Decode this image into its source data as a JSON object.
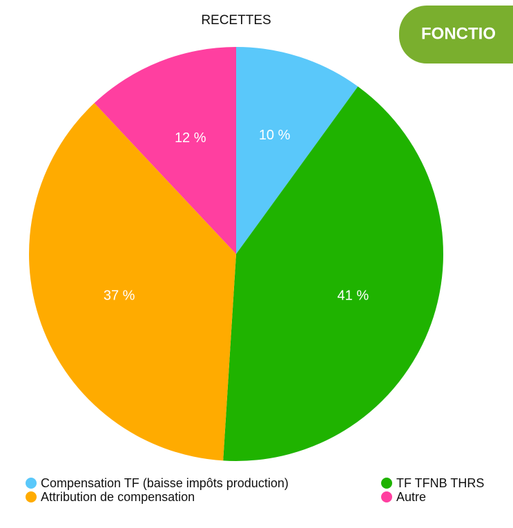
{
  "tab": {
    "label": "FONCTIO"
  },
  "chart_data": {
    "type": "pie",
    "title": "RECETTES",
    "categories": [
      "Compensation TF (baisse impôts production)",
      "TF TFNB THRS",
      "Attribution de compensation",
      "Autre"
    ],
    "values": [
      10,
      41,
      37,
      12
    ],
    "value_labels": [
      "10 %",
      "41 %",
      "37 %",
      "12 %"
    ],
    "colors": [
      "#5ac8fa",
      "#1fb300",
      "#ffab00",
      "#ff3fa0"
    ]
  }
}
